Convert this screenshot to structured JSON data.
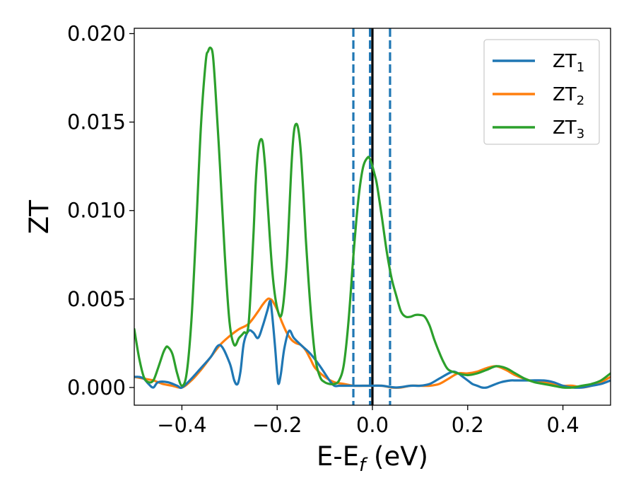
{
  "chart_data": {
    "type": "line",
    "title": "",
    "xlabel": "E-E",
    "xlabel_sub": "f",
    "xlabel_unit": " (eV)",
    "ylabel": "ZT",
    "xlim": [
      -0.5,
      0.5
    ],
    "ylim": [
      -0.001,
      0.0203
    ],
    "xticks": [
      -0.4,
      -0.2,
      0.0,
      0.2,
      0.4
    ],
    "xtick_labels": [
      "−0.4",
      "−0.2",
      "0.0",
      "0.2",
      "0.4"
    ],
    "yticks": [
      0.0,
      0.005,
      0.01,
      0.015,
      0.02
    ],
    "ytick_labels": [
      "0.000",
      "0.005",
      "0.010",
      "0.015",
      "0.020"
    ],
    "legend_position": "top-right",
    "grid": false,
    "vlines": [
      {
        "x": -0.04,
        "style": "dashed",
        "color": "#1f77b4"
      },
      {
        "x": -0.005,
        "style": "dashed",
        "color": "#1f77b4"
      },
      {
        "x": 0.0,
        "style": "solid",
        "color": "#000000"
      },
      {
        "x": 0.037,
        "style": "dashed",
        "color": "#1f77b4"
      }
    ],
    "series": [
      {
        "name": "ZT",
        "sub": "1",
        "color": "#1f77b4",
        "x": [
          -0.5,
          -0.49,
          -0.48,
          -0.47,
          -0.46,
          -0.45,
          -0.43,
          -0.41,
          -0.4,
          -0.38,
          -0.36,
          -0.34,
          -0.32,
          -0.3,
          -0.29,
          -0.283,
          -0.277,
          -0.27,
          -0.26,
          -0.25,
          -0.24,
          -0.23,
          -0.22,
          -0.215,
          -0.212,
          -0.205,
          -0.2,
          -0.197,
          -0.192,
          -0.185,
          -0.175,
          -0.165,
          -0.15,
          -0.13,
          -0.11,
          -0.09,
          -0.08,
          -0.07,
          -0.06,
          -0.04,
          -0.02,
          0.0,
          0.02,
          0.05,
          0.08,
          0.1,
          0.12,
          0.14,
          0.16,
          0.17,
          0.18,
          0.19,
          0.2,
          0.21,
          0.22,
          0.23,
          0.24,
          0.25,
          0.27,
          0.29,
          0.3,
          0.33,
          0.36,
          0.38,
          0.4,
          0.42,
          0.44,
          0.46,
          0.48,
          0.5
        ],
        "y": [
          0.0006,
          0.0006,
          0.0005,
          0.0002,
          0.0,
          0.0003,
          0.0003,
          0.0001,
          0.0,
          0.0005,
          0.0011,
          0.0017,
          0.0024,
          0.0014,
          0.0004,
          0.0002,
          0.0009,
          0.0025,
          0.0032,
          0.0031,
          0.0028,
          0.0035,
          0.0044,
          0.0049,
          0.0045,
          0.0025,
          0.0008,
          0.0002,
          0.0008,
          0.0022,
          0.0032,
          0.0028,
          0.0024,
          0.0019,
          0.0012,
          0.0004,
          0.0001,
          0.0001,
          0.0001,
          0.0001,
          0.0001,
          0.0001,
          0.0001,
          0.0,
          0.0001,
          0.0001,
          0.0002,
          0.0005,
          0.0008,
          0.0009,
          0.0008,
          0.0006,
          0.0004,
          0.0002,
          0.0001,
          0.0,
          0.0,
          0.0001,
          0.0003,
          0.0004,
          0.0004,
          0.0004,
          0.0004,
          0.0003,
          0.0001,
          0.0,
          0.0,
          0.0001,
          0.0002,
          0.0004
        ]
      },
      {
        "name": "ZT",
        "sub": "2",
        "color": "#ff7f0e",
        "x": [
          -0.5,
          -0.48,
          -0.46,
          -0.44,
          -0.42,
          -0.4,
          -0.38,
          -0.36,
          -0.34,
          -0.32,
          -0.3,
          -0.28,
          -0.26,
          -0.24,
          -0.23,
          -0.22,
          -0.215,
          -0.21,
          -0.2,
          -0.19,
          -0.18,
          -0.17,
          -0.16,
          -0.15,
          -0.14,
          -0.13,
          -0.12,
          -0.1,
          -0.08,
          -0.06,
          -0.04,
          -0.02,
          0.0,
          0.02,
          0.04,
          0.06,
          0.08,
          0.1,
          0.12,
          0.14,
          0.16,
          0.18,
          0.2,
          0.22,
          0.24,
          0.26,
          0.28,
          0.3,
          0.33,
          0.36,
          0.38,
          0.4,
          0.42,
          0.44,
          0.46,
          0.48,
          0.5
        ],
        "y": [
          0.0006,
          0.0005,
          0.0004,
          0.0002,
          0.0001,
          0.0,
          0.0004,
          0.001,
          0.0017,
          0.0024,
          0.0029,
          0.0033,
          0.0036,
          0.0043,
          0.0047,
          0.005,
          0.005,
          0.0049,
          0.0044,
          0.0037,
          0.0031,
          0.0027,
          0.0025,
          0.0024,
          0.0021,
          0.0016,
          0.0011,
          0.0006,
          0.0003,
          0.0002,
          0.0001,
          0.0001,
          0.0001,
          0.0001,
          0.0,
          0.0,
          0.0001,
          0.0001,
          0.0001,
          0.0002,
          0.0005,
          0.0008,
          0.0008,
          0.0009,
          0.0011,
          0.0012,
          0.001,
          0.0007,
          0.0004,
          0.0003,
          0.0002,
          0.0001,
          0.0001,
          0.0,
          0.0001,
          0.0003,
          0.0006
        ]
      },
      {
        "name": "ZT",
        "sub": "3",
        "color": "#2ca02c",
        "x": [
          -0.5,
          -0.49,
          -0.48,
          -0.47,
          -0.46,
          -0.45,
          -0.44,
          -0.435,
          -0.43,
          -0.42,
          -0.41,
          -0.4,
          -0.39,
          -0.38,
          -0.37,
          -0.36,
          -0.35,
          -0.345,
          -0.34,
          -0.335,
          -0.33,
          -0.32,
          -0.31,
          -0.3,
          -0.29,
          -0.28,
          -0.27,
          -0.26,
          -0.25,
          -0.245,
          -0.24,
          -0.235,
          -0.23,
          -0.225,
          -0.22,
          -0.21,
          -0.2,
          -0.19,
          -0.18,
          -0.17,
          -0.165,
          -0.16,
          -0.155,
          -0.15,
          -0.145,
          -0.14,
          -0.13,
          -0.12,
          -0.11,
          -0.1,
          -0.09,
          -0.08,
          -0.07,
          -0.06,
          -0.05,
          -0.04,
          -0.03,
          -0.02,
          -0.01,
          -0.005,
          0.0,
          0.005,
          0.01,
          0.02,
          0.03,
          0.04,
          0.05,
          0.06,
          0.07,
          0.08,
          0.09,
          0.1,
          0.11,
          0.12,
          0.13,
          0.14,
          0.15,
          0.16,
          0.18,
          0.2,
          0.22,
          0.24,
          0.26,
          0.28,
          0.3,
          0.32,
          0.34,
          0.36,
          0.38,
          0.4,
          0.42,
          0.44,
          0.46,
          0.48,
          0.5
        ],
        "y": [
          0.0033,
          0.0017,
          0.0006,
          0.0003,
          0.0004,
          0.0011,
          0.0019,
          0.0022,
          0.0023,
          0.0019,
          0.0008,
          0.0001,
          0.0008,
          0.0038,
          0.009,
          0.0148,
          0.0184,
          0.019,
          0.0192,
          0.0188,
          0.017,
          0.0125,
          0.0075,
          0.0037,
          0.0024,
          0.0028,
          0.0031,
          0.0036,
          0.0085,
          0.0116,
          0.0134,
          0.014,
          0.0138,
          0.0124,
          0.0104,
          0.0065,
          0.0045,
          0.0042,
          0.007,
          0.0125,
          0.0144,
          0.0149,
          0.0145,
          0.0132,
          0.011,
          0.0085,
          0.0045,
          0.0017,
          0.0006,
          0.0003,
          0.0002,
          0.0002,
          0.0004,
          0.0013,
          0.0038,
          0.0074,
          0.0105,
          0.0124,
          0.013,
          0.0129,
          0.0125,
          0.012,
          0.0114,
          0.0096,
          0.0077,
          0.0062,
          0.0052,
          0.0043,
          0.004,
          0.004,
          0.0041,
          0.0041,
          0.004,
          0.0035,
          0.0027,
          0.002,
          0.0014,
          0.001,
          0.0008,
          0.0007,
          0.0008,
          0.001,
          0.0012,
          0.0011,
          0.0008,
          0.0005,
          0.0003,
          0.0002,
          0.0001,
          0.0,
          0.0,
          0.0001,
          0.0002,
          0.0004,
          0.0008
        ]
      }
    ]
  }
}
